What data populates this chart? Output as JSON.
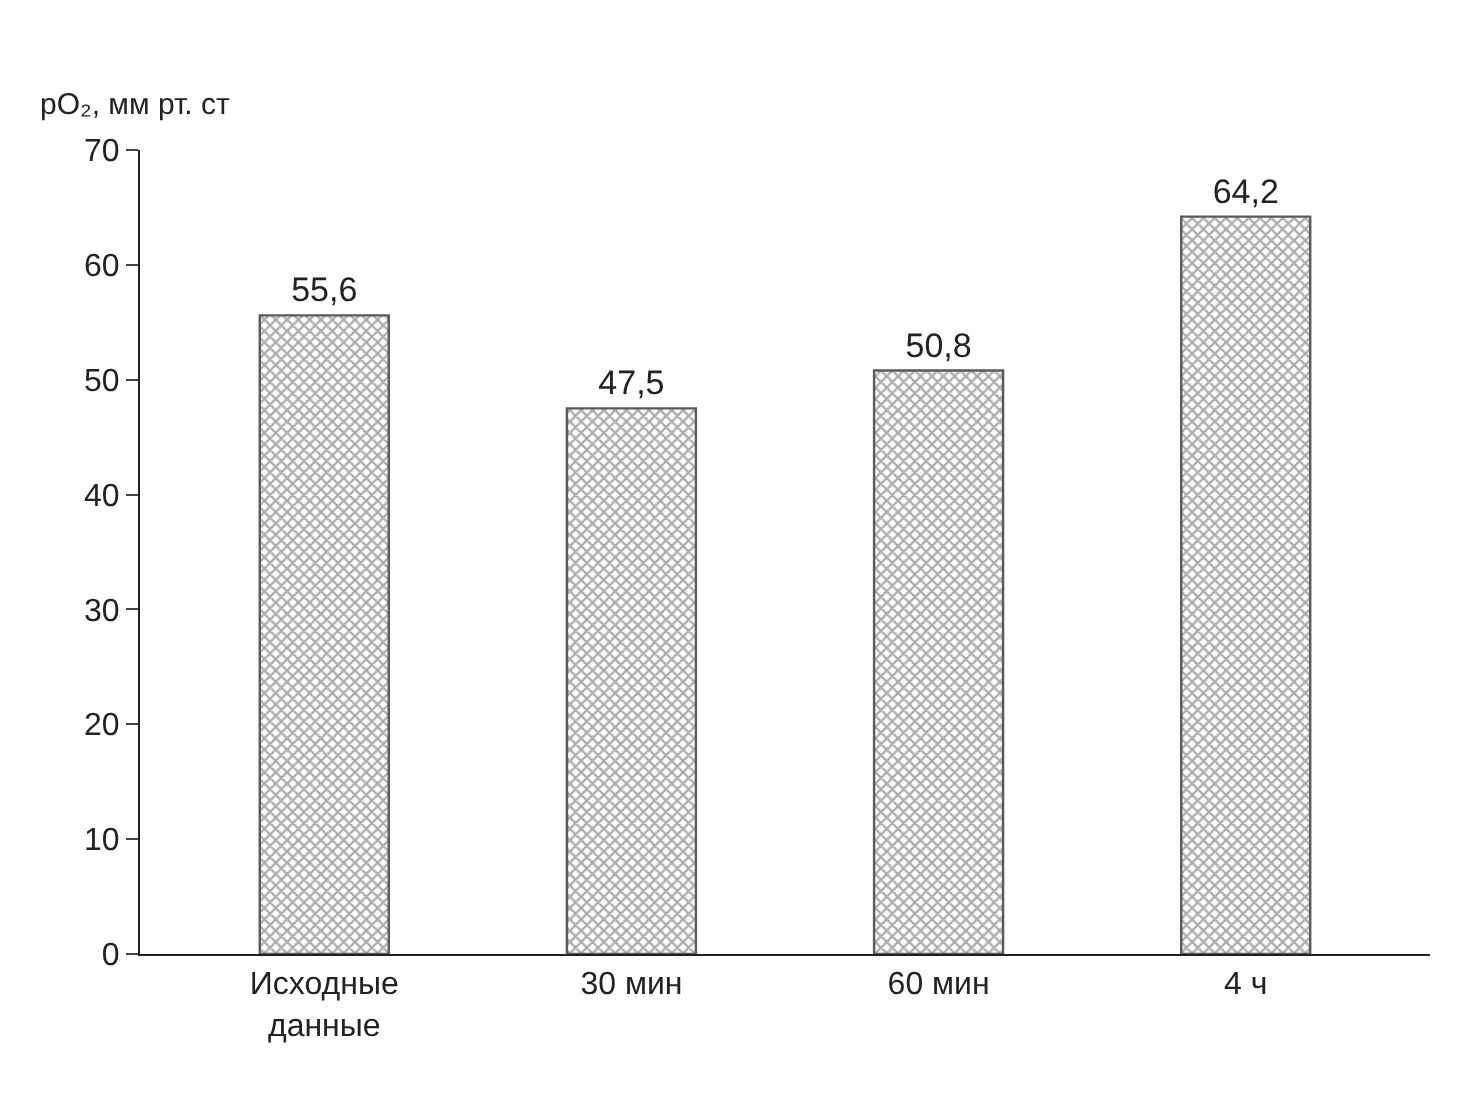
{
  "chart_data": {
    "type": "bar",
    "ylabel": "pO₂, мм рт. ст",
    "categories": [
      "Исходные данные",
      "30 мин",
      "60 мин",
      "4 ч"
    ],
    "values": [
      55.6,
      47.5,
      50.8,
      64.2
    ],
    "value_labels": [
      "55,6",
      "47,5",
      "50,8",
      "64,2"
    ],
    "color": "#5a5a5a",
    "ylim": [
      0,
      70
    ],
    "yticks": [
      0,
      10,
      20,
      30,
      40,
      50,
      60,
      70
    ]
  }
}
